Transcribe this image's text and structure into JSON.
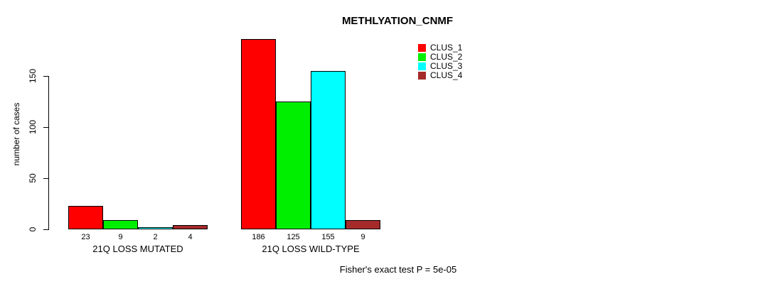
{
  "title": "METHLYATION_CNMF",
  "caption": "Fisher's exact test P = 5e-05",
  "chart_data": {
    "type": "bar",
    "grouped": true,
    "title": "METHLYATION_CNMF",
    "xlabel": "",
    "ylabel": "number of cases",
    "yticks": [
      0,
      50,
      100,
      150
    ],
    "ylim": [
      0,
      186
    ],
    "grid": false,
    "legend_position": "top-right",
    "bar_value_labels_shown": true,
    "categories": [
      "21Q LOSS MUTATED",
      "21Q LOSS WILD-TYPE"
    ],
    "series": [
      {
        "name": "CLUS_1",
        "color": "#ff0000",
        "values": [
          23,
          186
        ]
      },
      {
        "name": "CLUS_2",
        "color": "#00ee00",
        "values": [
          9,
          125
        ]
      },
      {
        "name": "CLUS_3",
        "color": "#00ffff",
        "values": [
          2,
          155
        ]
      },
      {
        "name": "CLUS_4",
        "color": "#a52a2a",
        "values": [
          4,
          9
        ]
      }
    ],
    "annotation": "Fisher's exact test P = 5e-05"
  }
}
